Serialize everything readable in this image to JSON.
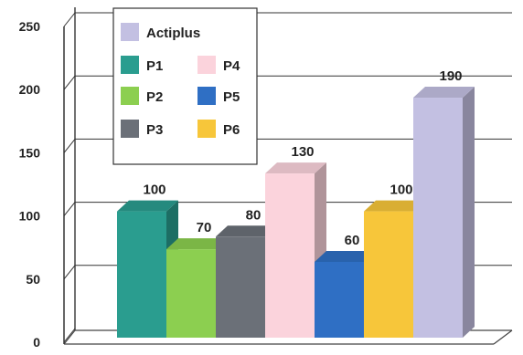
{
  "chart_data": {
    "type": "bar",
    "title": "",
    "xlabel": "",
    "ylabel": "",
    "ylim": [
      0,
      250
    ],
    "yticks": [
      0,
      50,
      100,
      150,
      200,
      250
    ],
    "grid": true,
    "three_d": true,
    "legend_placement": "top-left",
    "categories": [
      "P1",
      "P2",
      "P3",
      "P4",
      "P5",
      "P6",
      "Actiplus"
    ],
    "values": [
      100,
      70,
      80,
      130,
      60,
      100,
      190
    ],
    "data_labels": [
      "100",
      "70",
      "80",
      "130",
      "60",
      "100",
      "190"
    ],
    "colors": [
      "#2a9d8f",
      "#8ccf50",
      "#6b7078",
      "#fbd3dc",
      "#2f6fc4",
      "#f7c63a",
      "#c3c0e2"
    ],
    "legend": [
      {
        "label": "Actiplus",
        "color": "#c3c0e2"
      },
      {
        "label": "P1",
        "color": "#2a9d8f"
      },
      {
        "label": "P4",
        "color": "#fbd3dc"
      },
      {
        "label": "P2",
        "color": "#8ccf50"
      },
      {
        "label": "P5",
        "color": "#2f6fc4"
      },
      {
        "label": "P3",
        "color": "#6b7078"
      },
      {
        "label": "P6",
        "color": "#f7c63a"
      }
    ]
  }
}
